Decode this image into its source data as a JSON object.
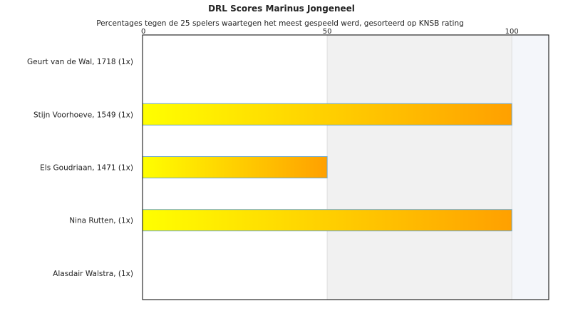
{
  "chart_data": {
    "type": "bar",
    "orientation": "horizontal",
    "title": "DRL Scores Marinus Jongeneel",
    "subtitle": "Percentages tegen de 25 spelers waartegen het meest gespeeld werd, gesorteerd op KNSB rating",
    "categories": [
      "Geurt van de Wal, 1718 (1x)",
      "Stijn Voorhoeve, 1549 (1x)",
      "Els Goudriaan, 1471 (1x)",
      "Nina Rutten,  (1x)",
      "Alasdair Walstra,  (1x)"
    ],
    "values": [
      0,
      100,
      50,
      100,
      0
    ],
    "x_ticks": [
      0,
      50,
      100
    ],
    "xlim": [
      0,
      110
    ],
    "tick_position": "top",
    "grid": true,
    "colors": {
      "bar_start": "#ffff00",
      "bar_end": "#ffa000",
      "bar_border": "#6fa8c8",
      "band_1": "#ffffff",
      "band_2": "#f1f1f1",
      "band_3": "#f4f6fa",
      "axis": "#000000",
      "gridline": "#dddddd"
    }
  }
}
